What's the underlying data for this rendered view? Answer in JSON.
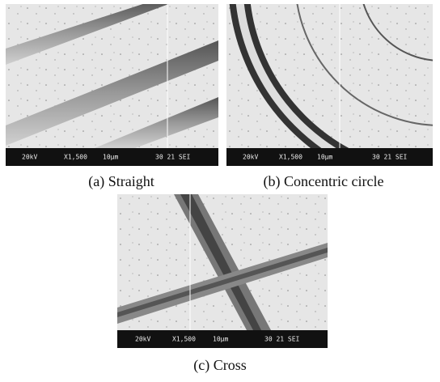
{
  "panels": [
    {
      "caption": "(a) Straight",
      "info_bar": {
        "voltage": "20kV",
        "magnification": "X1,500",
        "scale": "10μm",
        "info": "30 21 SEI"
      }
    },
    {
      "caption": "(b) Concentric circle",
      "info_bar": {
        "voltage": "20kV",
        "magnification": "X1,500",
        "scale": "10μm",
        "info": "30 21 SEI"
      }
    },
    {
      "caption": "(c) Cross",
      "info_bar": {
        "voltage": "20kV",
        "magnification": "X1,500",
        "scale": "10μm",
        "info": "30 21 SEI"
      }
    }
  ]
}
